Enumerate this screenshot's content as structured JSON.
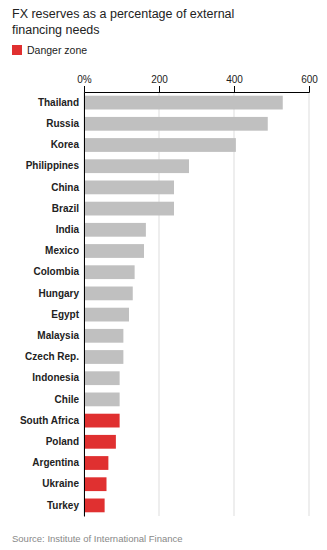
{
  "chart_data": {
    "type": "bar",
    "orientation": "horizontal",
    "title": "FX reserves as a percentage of external\nfinancing needs",
    "annotations": [
      "Source: Institute of International Finance"
    ],
    "categories": [
      "Thailand",
      "Russia",
      "Korea",
      "Philippines",
      "China",
      "Brazil",
      "India",
      "Mexico",
      "Colombia",
      "Hungary",
      "Egypt",
      "Malaysia",
      "Czech Rep.",
      "Indonesia",
      "Chile",
      "South Africa",
      "Poland",
      "Argentina",
      "Ukraine",
      "Turkey"
    ],
    "series": [
      {
        "color": "#c0c0c0",
        "values": [
          530,
          490,
          405,
          280,
          240,
          240,
          165,
          160,
          135,
          130,
          120,
          105,
          105,
          95,
          95,
          null,
          null,
          null,
          null,
          null
        ]
      },
      {
        "name": "Danger zone",
        "color": "#e03030",
        "values": [
          null,
          null,
          null,
          null,
          null,
          null,
          null,
          null,
          null,
          null,
          null,
          null,
          null,
          null,
          null,
          95,
          85,
          65,
          60,
          55
        ]
      }
    ],
    "xlim": [
      0,
      600
    ],
    "xticks": [
      {
        "value": 0,
        "label": "0%"
      },
      200,
      400,
      600
    ],
    "grid": true,
    "legend": "top-left"
  }
}
